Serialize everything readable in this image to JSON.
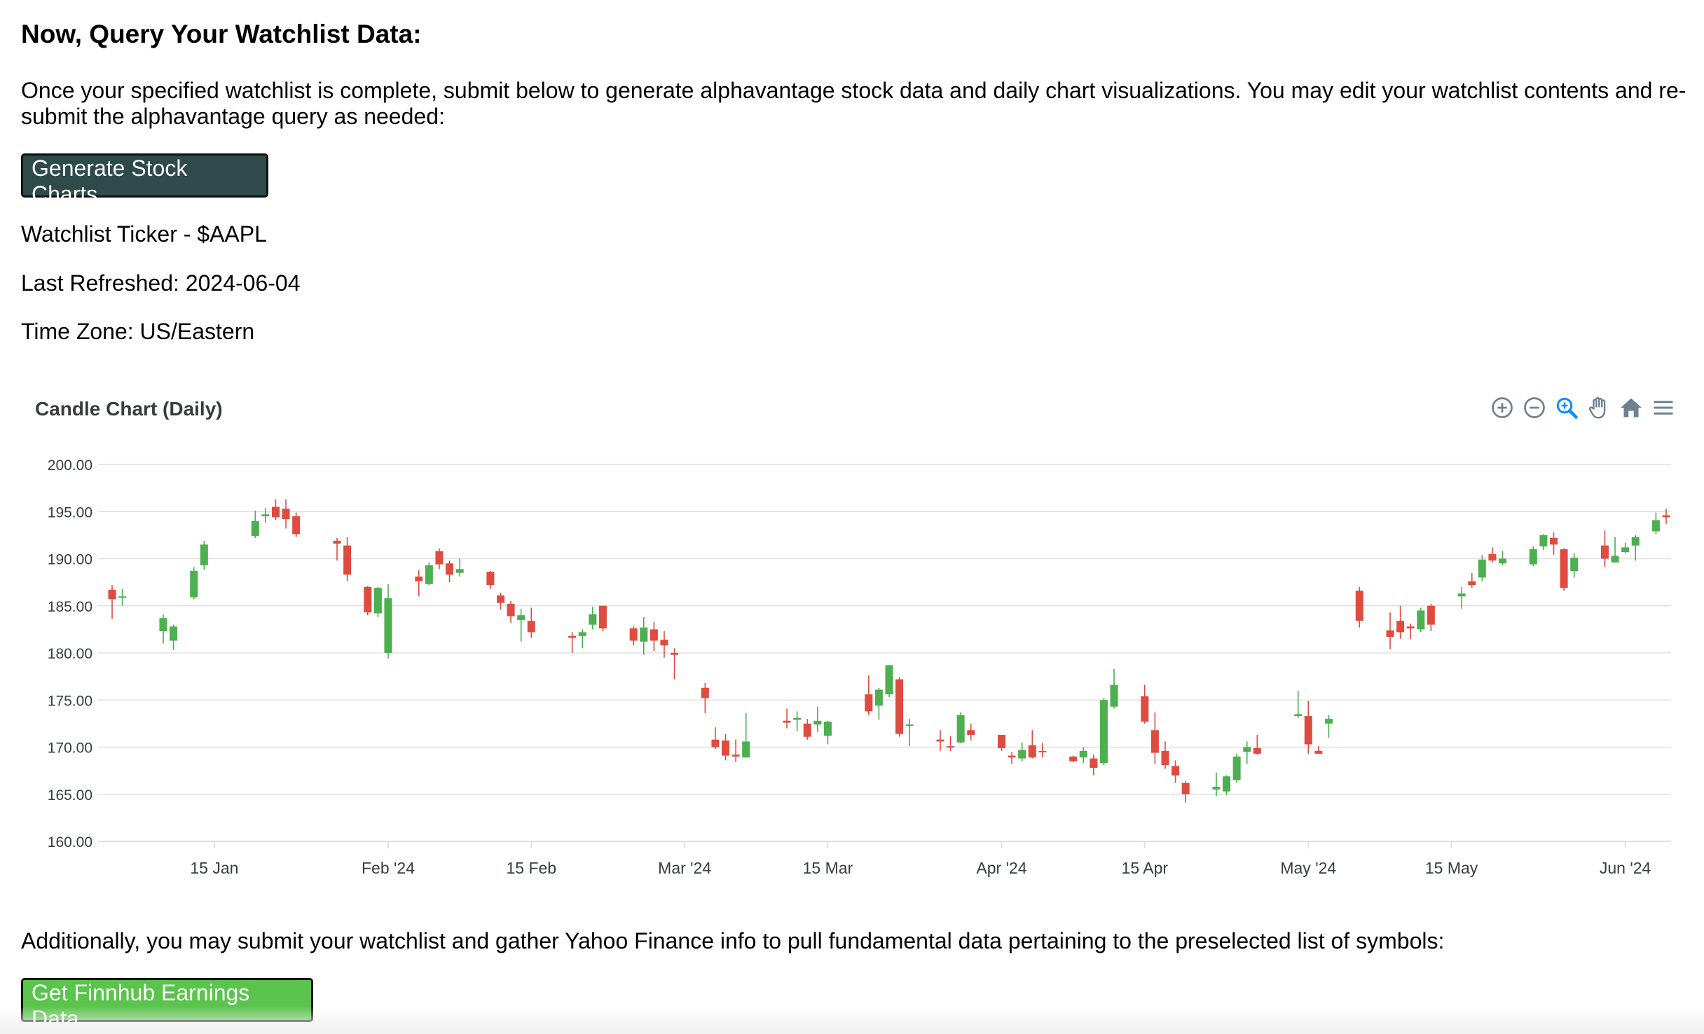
{
  "heading": "Now, Query Your Watchlist Data:",
  "intro": "Once your specified watchlist is complete, submit below to generate alphavantage stock data and daily chart visualizations. You may edit your watchlist contents and re-submit the alphavantage query as needed:",
  "generate_button": "Generate Stock Charts",
  "ticker_line": "Watchlist Ticker - $AAPL",
  "refreshed_line": "Last Refreshed: 2024-06-04",
  "timezone_line": "Time Zone: US/Eastern",
  "footer_text": "Additionally, you may submit your watchlist and gather Yahoo Finance info to pull fundamental data pertaining to the preselected list of symbols:",
  "earnings_button": "Get Finnhub Earnings Data",
  "colors": {
    "up": "#4caf50",
    "down": "#e04b3f",
    "dark_button": "#2e4a4a",
    "green_button": "#5ac44c",
    "toolbar_icon": "#6e8192"
  },
  "toolbar_icons": [
    "zoom-in-icon",
    "zoom-out-icon",
    "zoom-selection-icon",
    "pan-hand-icon",
    "home-icon",
    "menu-icon"
  ],
  "chart_data": {
    "type": "candlestick",
    "title": "Candle Chart (Daily)",
    "ylim": [
      160,
      200
    ],
    "yticks": [
      "160.00",
      "165.00",
      "170.00",
      "175.00",
      "180.00",
      "185.00",
      "190.00",
      "195.00",
      "200.00"
    ],
    "xticks": [
      {
        "label": "15 Jan",
        "date": "2024-01-15"
      },
      {
        "label": "Feb '24",
        "date": "2024-02-01"
      },
      {
        "label": "15 Feb",
        "date": "2024-02-15"
      },
      {
        "label": "Mar '24",
        "date": "2024-03-01"
      },
      {
        "label": "15 Mar",
        "date": "2024-03-15"
      },
      {
        "label": "Apr '24",
        "date": "2024-04-01"
      },
      {
        "label": "15 Apr",
        "date": "2024-04-15"
      },
      {
        "label": "May '24",
        "date": "2024-05-01"
      },
      {
        "label": "15 May",
        "date": "2024-05-15"
      },
      {
        "label": "Jun '24",
        "date": "2024-06-01"
      }
    ],
    "xrange": [
      "2024-01-05",
      "2024-06-05"
    ],
    "candles": [
      {
        "d": "2024-01-05",
        "o": 186.7,
        "h": 187.2,
        "l": 183.6,
        "c": 185.7
      },
      {
        "d": "2024-01-06",
        "o": 185.9,
        "h": 186.8,
        "l": 185.0,
        "c": 186.0
      },
      {
        "d": "2024-01-10",
        "o": 182.3,
        "h": 184.1,
        "l": 181.0,
        "c": 183.7
      },
      {
        "d": "2024-01-11",
        "o": 181.3,
        "h": 183.0,
        "l": 180.3,
        "c": 182.8
      },
      {
        "d": "2024-01-13",
        "o": 185.9,
        "h": 189.1,
        "l": 185.7,
        "c": 188.7
      },
      {
        "d": "2024-01-14",
        "o": 189.3,
        "h": 191.9,
        "l": 188.8,
        "c": 191.5
      },
      {
        "d": "2024-01-19",
        "o": 192.4,
        "h": 195.1,
        "l": 192.2,
        "c": 194.0
      },
      {
        "d": "2024-01-20",
        "o": 194.5,
        "h": 195.4,
        "l": 193.8,
        "c": 194.7
      },
      {
        "d": "2024-01-21",
        "o": 195.5,
        "h": 196.3,
        "l": 194.1,
        "c": 194.4
      },
      {
        "d": "2024-01-22",
        "o": 195.3,
        "h": 196.3,
        "l": 193.2,
        "c": 194.2
      },
      {
        "d": "2024-01-23",
        "o": 194.5,
        "h": 194.9,
        "l": 192.3,
        "c": 192.6
      },
      {
        "d": "2024-01-27",
        "o": 191.9,
        "h": 192.2,
        "l": 189.8,
        "c": 191.6
      },
      {
        "d": "2024-01-28",
        "o": 191.4,
        "h": 192.3,
        "l": 187.6,
        "c": 188.3
      },
      {
        "d": "2024-01-30",
        "o": 187.0,
        "h": 187.1,
        "l": 184.0,
        "c": 184.3
      },
      {
        "d": "2024-01-31",
        "o": 184.2,
        "h": 187.0,
        "l": 183.8,
        "c": 186.9
      },
      {
        "d": "2024-02-01",
        "o": 180.0,
        "h": 187.3,
        "l": 179.4,
        "c": 185.8
      },
      {
        "d": "2024-02-04",
        "o": 188.1,
        "h": 188.8,
        "l": 186.0,
        "c": 187.6
      },
      {
        "d": "2024-02-05",
        "o": 187.3,
        "h": 189.6,
        "l": 187.2,
        "c": 189.3
      },
      {
        "d": "2024-02-06",
        "o": 190.8,
        "h": 191.1,
        "l": 188.9,
        "c": 189.4
      },
      {
        "d": "2024-02-07",
        "o": 189.5,
        "h": 189.8,
        "l": 187.5,
        "c": 188.3
      },
      {
        "d": "2024-02-08",
        "o": 188.5,
        "h": 190.0,
        "l": 188.1,
        "c": 188.9
      },
      {
        "d": "2024-02-11",
        "o": 188.6,
        "h": 188.7,
        "l": 186.8,
        "c": 187.2
      },
      {
        "d": "2024-02-12",
        "o": 186.1,
        "h": 186.4,
        "l": 184.6,
        "c": 185.3
      },
      {
        "d": "2024-02-13",
        "o": 185.2,
        "h": 185.5,
        "l": 183.2,
        "c": 183.9
      },
      {
        "d": "2024-02-14",
        "o": 183.5,
        "h": 184.7,
        "l": 181.2,
        "c": 184.0
      },
      {
        "d": "2024-02-15",
        "o": 183.4,
        "h": 184.8,
        "l": 181.6,
        "c": 182.2
      },
      {
        "d": "2024-02-19",
        "o": 181.8,
        "h": 182.2,
        "l": 180.0,
        "c": 181.6
      },
      {
        "d": "2024-02-20",
        "o": 181.8,
        "h": 182.5,
        "l": 180.5,
        "c": 182.2
      },
      {
        "d": "2024-02-21",
        "o": 183.0,
        "h": 184.9,
        "l": 182.5,
        "c": 184.1
      },
      {
        "d": "2024-02-22",
        "o": 185.0,
        "h": 185.0,
        "l": 182.3,
        "c": 182.6
      },
      {
        "d": "2024-02-25",
        "o": 182.6,
        "h": 182.8,
        "l": 180.8,
        "c": 181.3
      },
      {
        "d": "2024-02-26",
        "o": 181.2,
        "h": 183.8,
        "l": 179.8,
        "c": 182.7
      },
      {
        "d": "2024-02-27",
        "o": 182.5,
        "h": 183.3,
        "l": 180.2,
        "c": 181.3
      },
      {
        "d": "2024-02-28",
        "o": 181.4,
        "h": 182.3,
        "l": 179.5,
        "c": 180.8
      },
      {
        "d": "2024-02-29",
        "o": 180.0,
        "h": 180.5,
        "l": 177.2,
        "c": 179.8
      },
      {
        "d": "2024-03-03",
        "o": 176.3,
        "h": 176.8,
        "l": 173.6,
        "c": 175.2
      },
      {
        "d": "2024-03-04",
        "o": 170.8,
        "h": 172.1,
        "l": 169.8,
        "c": 170.0
      },
      {
        "d": "2024-03-05",
        "o": 170.7,
        "h": 171.4,
        "l": 168.6,
        "c": 169.1
      },
      {
        "d": "2024-03-06",
        "o": 169.2,
        "h": 170.8,
        "l": 168.4,
        "c": 169.0
      },
      {
        "d": "2024-03-07",
        "o": 168.9,
        "h": 173.6,
        "l": 168.9,
        "c": 170.6
      },
      {
        "d": "2024-03-11",
        "o": 172.8,
        "h": 174.1,
        "l": 172.0,
        "c": 172.6
      },
      {
        "d": "2024-03-12",
        "o": 172.9,
        "h": 173.8,
        "l": 171.7,
        "c": 173.1
      },
      {
        "d": "2024-03-13",
        "o": 172.5,
        "h": 173.0,
        "l": 170.8,
        "c": 171.1
      },
      {
        "d": "2024-03-14",
        "o": 172.4,
        "h": 174.3,
        "l": 171.6,
        "c": 172.8
      },
      {
        "d": "2024-03-15",
        "o": 171.2,
        "h": 172.8,
        "l": 170.3,
        "c": 172.7
      },
      {
        "d": "2024-03-19",
        "o": 175.6,
        "h": 177.6,
        "l": 173.4,
        "c": 173.8
      },
      {
        "d": "2024-03-20",
        "o": 174.4,
        "h": 176.3,
        "l": 172.9,
        "c": 176.1
      },
      {
        "d": "2024-03-21",
        "o": 175.6,
        "h": 178.7,
        "l": 175.3,
        "c": 178.7
      },
      {
        "d": "2024-03-22",
        "o": 177.2,
        "h": 177.4,
        "l": 171.1,
        "c": 171.4
      },
      {
        "d": "2024-03-23",
        "o": 172.3,
        "h": 173.0,
        "l": 170.1,
        "c": 172.4
      },
      {
        "d": "2024-03-26",
        "o": 170.8,
        "h": 171.8,
        "l": 169.6,
        "c": 170.6
      },
      {
        "d": "2024-03-27",
        "o": 170.1,
        "h": 171.2,
        "l": 169.6,
        "c": 170.0
      },
      {
        "d": "2024-03-28",
        "o": 170.5,
        "h": 173.7,
        "l": 170.4,
        "c": 173.4
      },
      {
        "d": "2024-03-29",
        "o": 171.8,
        "h": 172.5,
        "l": 170.7,
        "c": 171.3
      },
      {
        "d": "2024-04-01",
        "o": 171.3,
        "h": 171.3,
        "l": 169.6,
        "c": 169.9
      },
      {
        "d": "2024-04-02",
        "o": 169.1,
        "h": 169.5,
        "l": 168.2,
        "c": 168.9
      },
      {
        "d": "2024-04-03",
        "o": 168.8,
        "h": 170.5,
        "l": 168.5,
        "c": 169.7
      },
      {
        "d": "2024-04-04",
        "o": 170.2,
        "h": 171.8,
        "l": 168.8,
        "c": 168.9
      },
      {
        "d": "2024-04-05",
        "o": 169.6,
        "h": 170.4,
        "l": 168.9,
        "c": 169.5
      },
      {
        "d": "2024-04-08",
        "o": 169.0,
        "h": 169.1,
        "l": 168.4,
        "c": 168.5
      },
      {
        "d": "2024-04-09",
        "o": 168.9,
        "h": 170.0,
        "l": 168.3,
        "c": 169.6
      },
      {
        "d": "2024-04-10",
        "o": 168.8,
        "h": 169.2,
        "l": 167.0,
        "c": 167.8
      },
      {
        "d": "2024-04-11",
        "o": 168.3,
        "h": 175.2,
        "l": 168.1,
        "c": 175.0
      },
      {
        "d": "2024-04-12",
        "o": 174.3,
        "h": 178.3,
        "l": 174.1,
        "c": 176.6
      },
      {
        "d": "2024-04-15",
        "o": 175.4,
        "h": 176.6,
        "l": 172.5,
        "c": 172.7
      },
      {
        "d": "2024-04-16",
        "o": 171.8,
        "h": 173.7,
        "l": 168.2,
        "c": 169.4
      },
      {
        "d": "2024-04-17",
        "o": 169.6,
        "h": 170.6,
        "l": 167.7,
        "c": 168.1
      },
      {
        "d": "2024-04-18",
        "o": 168.0,
        "h": 168.6,
        "l": 166.2,
        "c": 167.0
      },
      {
        "d": "2024-04-19",
        "o": 166.2,
        "h": 166.4,
        "l": 164.1,
        "c": 165.0
      },
      {
        "d": "2024-04-22",
        "o": 165.5,
        "h": 167.3,
        "l": 164.8,
        "c": 165.8
      },
      {
        "d": "2024-04-23",
        "o": 165.3,
        "h": 167.0,
        "l": 164.9,
        "c": 166.9
      },
      {
        "d": "2024-04-24",
        "o": 166.5,
        "h": 169.3,
        "l": 166.2,
        "c": 169.0
      },
      {
        "d": "2024-04-25",
        "o": 169.5,
        "h": 170.6,
        "l": 168.2,
        "c": 170.0
      },
      {
        "d": "2024-04-26",
        "o": 169.9,
        "h": 171.3,
        "l": 169.2,
        "c": 169.3
      },
      {
        "d": "2024-04-30",
        "o": 173.3,
        "h": 176.0,
        "l": 173.1,
        "c": 173.5
      },
      {
        "d": "2024-05-01",
        "o": 173.3,
        "h": 174.9,
        "l": 169.3,
        "c": 170.3
      },
      {
        "d": "2024-05-02",
        "o": 169.6,
        "h": 170.1,
        "l": 169.3,
        "c": 169.3
      },
      {
        "d": "2024-05-03",
        "o": 172.5,
        "h": 173.4,
        "l": 171.0,
        "c": 173.0
      },
      {
        "d": "2024-05-06",
        "o": 186.6,
        "h": 187.0,
        "l": 182.7,
        "c": 183.4
      },
      {
        "d": "2024-05-09",
        "o": 182.4,
        "h": 184.3,
        "l": 180.4,
        "c": 181.7
      },
      {
        "d": "2024-05-10",
        "o": 183.4,
        "h": 185.0,
        "l": 181.5,
        "c": 182.2
      },
      {
        "d": "2024-05-11",
        "o": 182.8,
        "h": 183.1,
        "l": 181.5,
        "c": 182.6
      },
      {
        "d": "2024-05-12",
        "o": 182.5,
        "h": 184.8,
        "l": 182.2,
        "c": 184.5
      },
      {
        "d": "2024-05-13",
        "o": 185.0,
        "h": 185.2,
        "l": 182.3,
        "c": 183.0
      },
      {
        "d": "2024-05-16",
        "o": 186.0,
        "h": 187.0,
        "l": 184.7,
        "c": 186.3
      },
      {
        "d": "2024-05-17",
        "o": 187.6,
        "h": 188.5,
        "l": 186.9,
        "c": 187.2
      },
      {
        "d": "2024-05-18",
        "o": 188.0,
        "h": 190.4,
        "l": 187.6,
        "c": 189.9
      },
      {
        "d": "2024-05-19",
        "o": 190.5,
        "h": 191.2,
        "l": 189.6,
        "c": 189.8
      },
      {
        "d": "2024-05-20",
        "o": 189.5,
        "h": 190.8,
        "l": 189.3,
        "c": 190.0
      },
      {
        "d": "2024-05-23",
        "o": 189.4,
        "h": 191.3,
        "l": 189.2,
        "c": 191.0
      },
      {
        "d": "2024-05-24",
        "o": 191.3,
        "h": 192.6,
        "l": 190.9,
        "c": 192.5
      },
      {
        "d": "2024-05-25",
        "o": 192.2,
        "h": 192.8,
        "l": 190.4,
        "c": 191.5
      },
      {
        "d": "2024-05-26",
        "o": 191.0,
        "h": 191.1,
        "l": 186.6,
        "c": 186.9
      },
      {
        "d": "2024-05-27",
        "o": 188.7,
        "h": 190.6,
        "l": 188.0,
        "c": 190.1
      },
      {
        "d": "2024-05-30",
        "o": 191.4,
        "h": 193.0,
        "l": 189.1,
        "c": 190.0
      },
      {
        "d": "2024-05-31",
        "o": 189.6,
        "h": 192.3,
        "l": 189.6,
        "c": 190.3
      },
      {
        "d": "2024-06-01",
        "o": 190.7,
        "h": 191.7,
        "l": 190.6,
        "c": 191.2
      },
      {
        "d": "2024-06-02",
        "o": 191.4,
        "h": 192.5,
        "l": 189.8,
        "c": 192.3
      },
      {
        "d": "2024-06-04",
        "o": 192.9,
        "h": 194.9,
        "l": 192.6,
        "c": 194.1
      },
      {
        "d": "2024-06-05",
        "o": 194.6,
        "h": 195.3,
        "l": 193.7,
        "c": 194.4
      }
    ]
  }
}
